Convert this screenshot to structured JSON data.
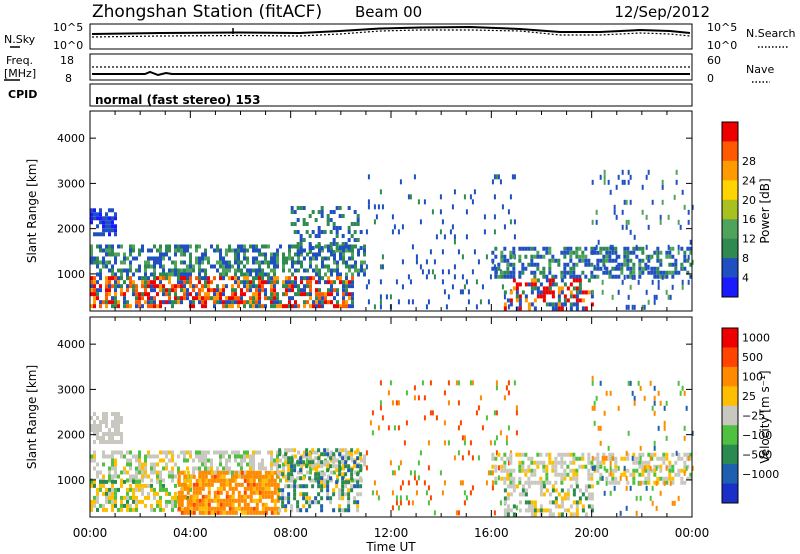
{
  "header": {
    "title": "Zhongshan Station (fitACF)",
    "beam": "Beam 00",
    "date": "12/Sep/2012"
  },
  "noise_panel": {
    "left_label": "N.Sky",
    "left_ticks": [
      "10^5",
      "10^0"
    ],
    "right_label": "N.Search",
    "right_ticks": [
      "10^5",
      "10^0"
    ]
  },
  "freq_panel": {
    "left_label_1": "Freq.",
    "left_label_2": "[MHz]",
    "left_ticks": [
      "18",
      "8"
    ],
    "right_label": "Nave",
    "right_ticks": [
      "60",
      "0"
    ]
  },
  "cpid_panel": {
    "label": "CPID",
    "mode_text": "normal (fast stereo) 153"
  },
  "colors": {
    "power_scale": [
      "#1a1aff",
      "#1f4fc0",
      "#2f8a50",
      "#4fa35a",
      "#a8c020",
      "#ffd400",
      "#ff9a00",
      "#ff5a00",
      "#ee0000"
    ],
    "velocity_scale": [
      "#ee0000",
      "#ff4400",
      "#ff8a00",
      "#ffbf00",
      "#c8c8c0",
      "#50c040",
      "#2a8a50",
      "#1f5fb0",
      "#1a2fc8"
    ]
  },
  "chart_data": [
    {
      "type": "heatmap",
      "name": "Power",
      "xlabel": "",
      "ylabel": "Slant Range [km]",
      "x_ticks": [
        "00:00",
        "04:00",
        "08:00",
        "12:00",
        "16:00",
        "20:00",
        "00:00"
      ],
      "x_range_hours": [
        0,
        24
      ],
      "ylim": [
        180,
        4600
      ],
      "y_ticks": [
        1000,
        2000,
        3000,
        4000
      ],
      "colorbar": {
        "label": "Power [dB]",
        "ticks": [
          "4",
          "8",
          "12",
          "16",
          "20",
          "24",
          "28"
        ],
        "range": [
          0,
          30
        ]
      }
    },
    {
      "type": "heatmap",
      "name": "Velocity",
      "xlabel": "Time UT",
      "ylabel": "Slant Range [km]",
      "x_ticks": [
        "00:00",
        "04:00",
        "08:00",
        "12:00",
        "16:00",
        "20:00",
        "00:00"
      ],
      "x_range_hours": [
        0,
        24
      ],
      "ylim": [
        180,
        4600
      ],
      "y_ticks": [
        1000,
        2000,
        3000,
        4000
      ],
      "colorbar": {
        "label": "Velocity [m s⁻¹]",
        "ticks": [
          "1000",
          "500",
          "100",
          "25",
          "−25",
          "−100",
          "−500",
          "−1000"
        ]
      }
    }
  ]
}
